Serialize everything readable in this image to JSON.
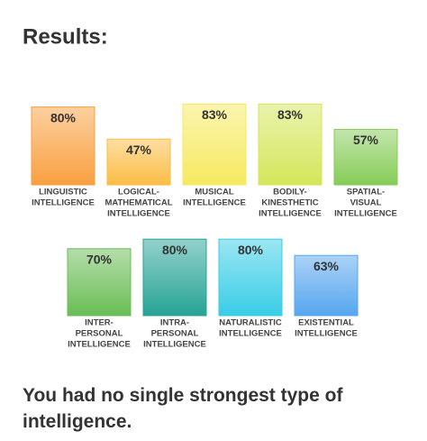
{
  "header": "Results:",
  "conclusion": "You had no single strongest type of intelligence.",
  "chart_data": [
    {
      "type": "bar",
      "categories": [
        [
          "LINGUISTIC",
          "INTELLIGENCE"
        ],
        [
          "LOGICAL-",
          "MATHEMATICAL",
          "INTELLIGENCE"
        ],
        [
          "MUSICAL",
          "INTELLIGENCE"
        ],
        [
          "BODILY-",
          "KINESTHETIC",
          "INTELLIGENCE"
        ],
        [
          "SPATIAL-",
          "VISUAL",
          "INTELLIGENCE"
        ]
      ],
      "values": [
        80,
        47,
        83,
        83,
        57
      ],
      "value_labels": [
        "80%",
        "47%",
        "83%",
        "83%",
        "57%"
      ],
      "colors": [
        "#f9a040",
        "#fbbd45",
        "#f6ea60",
        "#d4e65a",
        "#86cc58"
      ],
      "ylim": [
        0,
        100
      ]
    },
    {
      "type": "bar",
      "categories": [
        [
          "INTER-",
          "PERSONAL",
          "INTELLIGENCE"
        ],
        [
          "INTRA-",
          "PERSONAL",
          "INTELLIGENCE"
        ],
        [
          "NATURALISTIC",
          "INTELLIGENCE"
        ],
        [
          "EXISTENTIAL",
          "INTELLIGENCE"
        ]
      ],
      "values": [
        70,
        80,
        80,
        63
      ],
      "value_labels": [
        "70%",
        "80%",
        "80%",
        "63%"
      ],
      "colors": [
        "#6abd55",
        "#27a396",
        "#38cde6",
        "#56a6ef"
      ],
      "ylim": [
        0,
        100
      ]
    }
  ]
}
